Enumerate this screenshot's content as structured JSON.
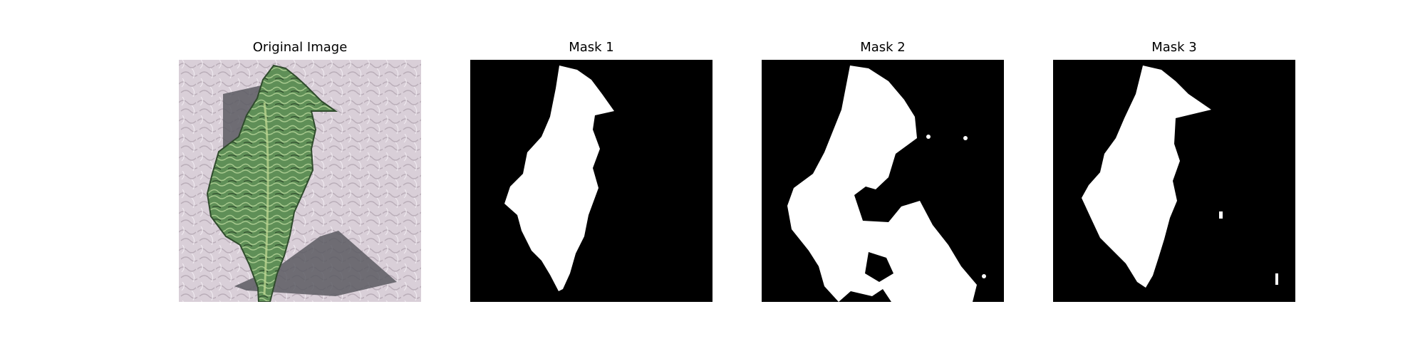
{
  "figure": {
    "panels": [
      {
        "title": "Original Image",
        "kind": "photo",
        "subject": "green-leaf-icon"
      },
      {
        "title": "Mask 1",
        "kind": "mask"
      },
      {
        "title": "Mask 2",
        "kind": "mask"
      },
      {
        "title": "Mask 3",
        "kind": "mask"
      }
    ]
  },
  "colors": {
    "mask_background": "#000000",
    "mask_foreground": "#ffffff",
    "texture_background": "#d9cfd8",
    "leaf": "#5f8f57",
    "shadow": "#5b5b62"
  }
}
